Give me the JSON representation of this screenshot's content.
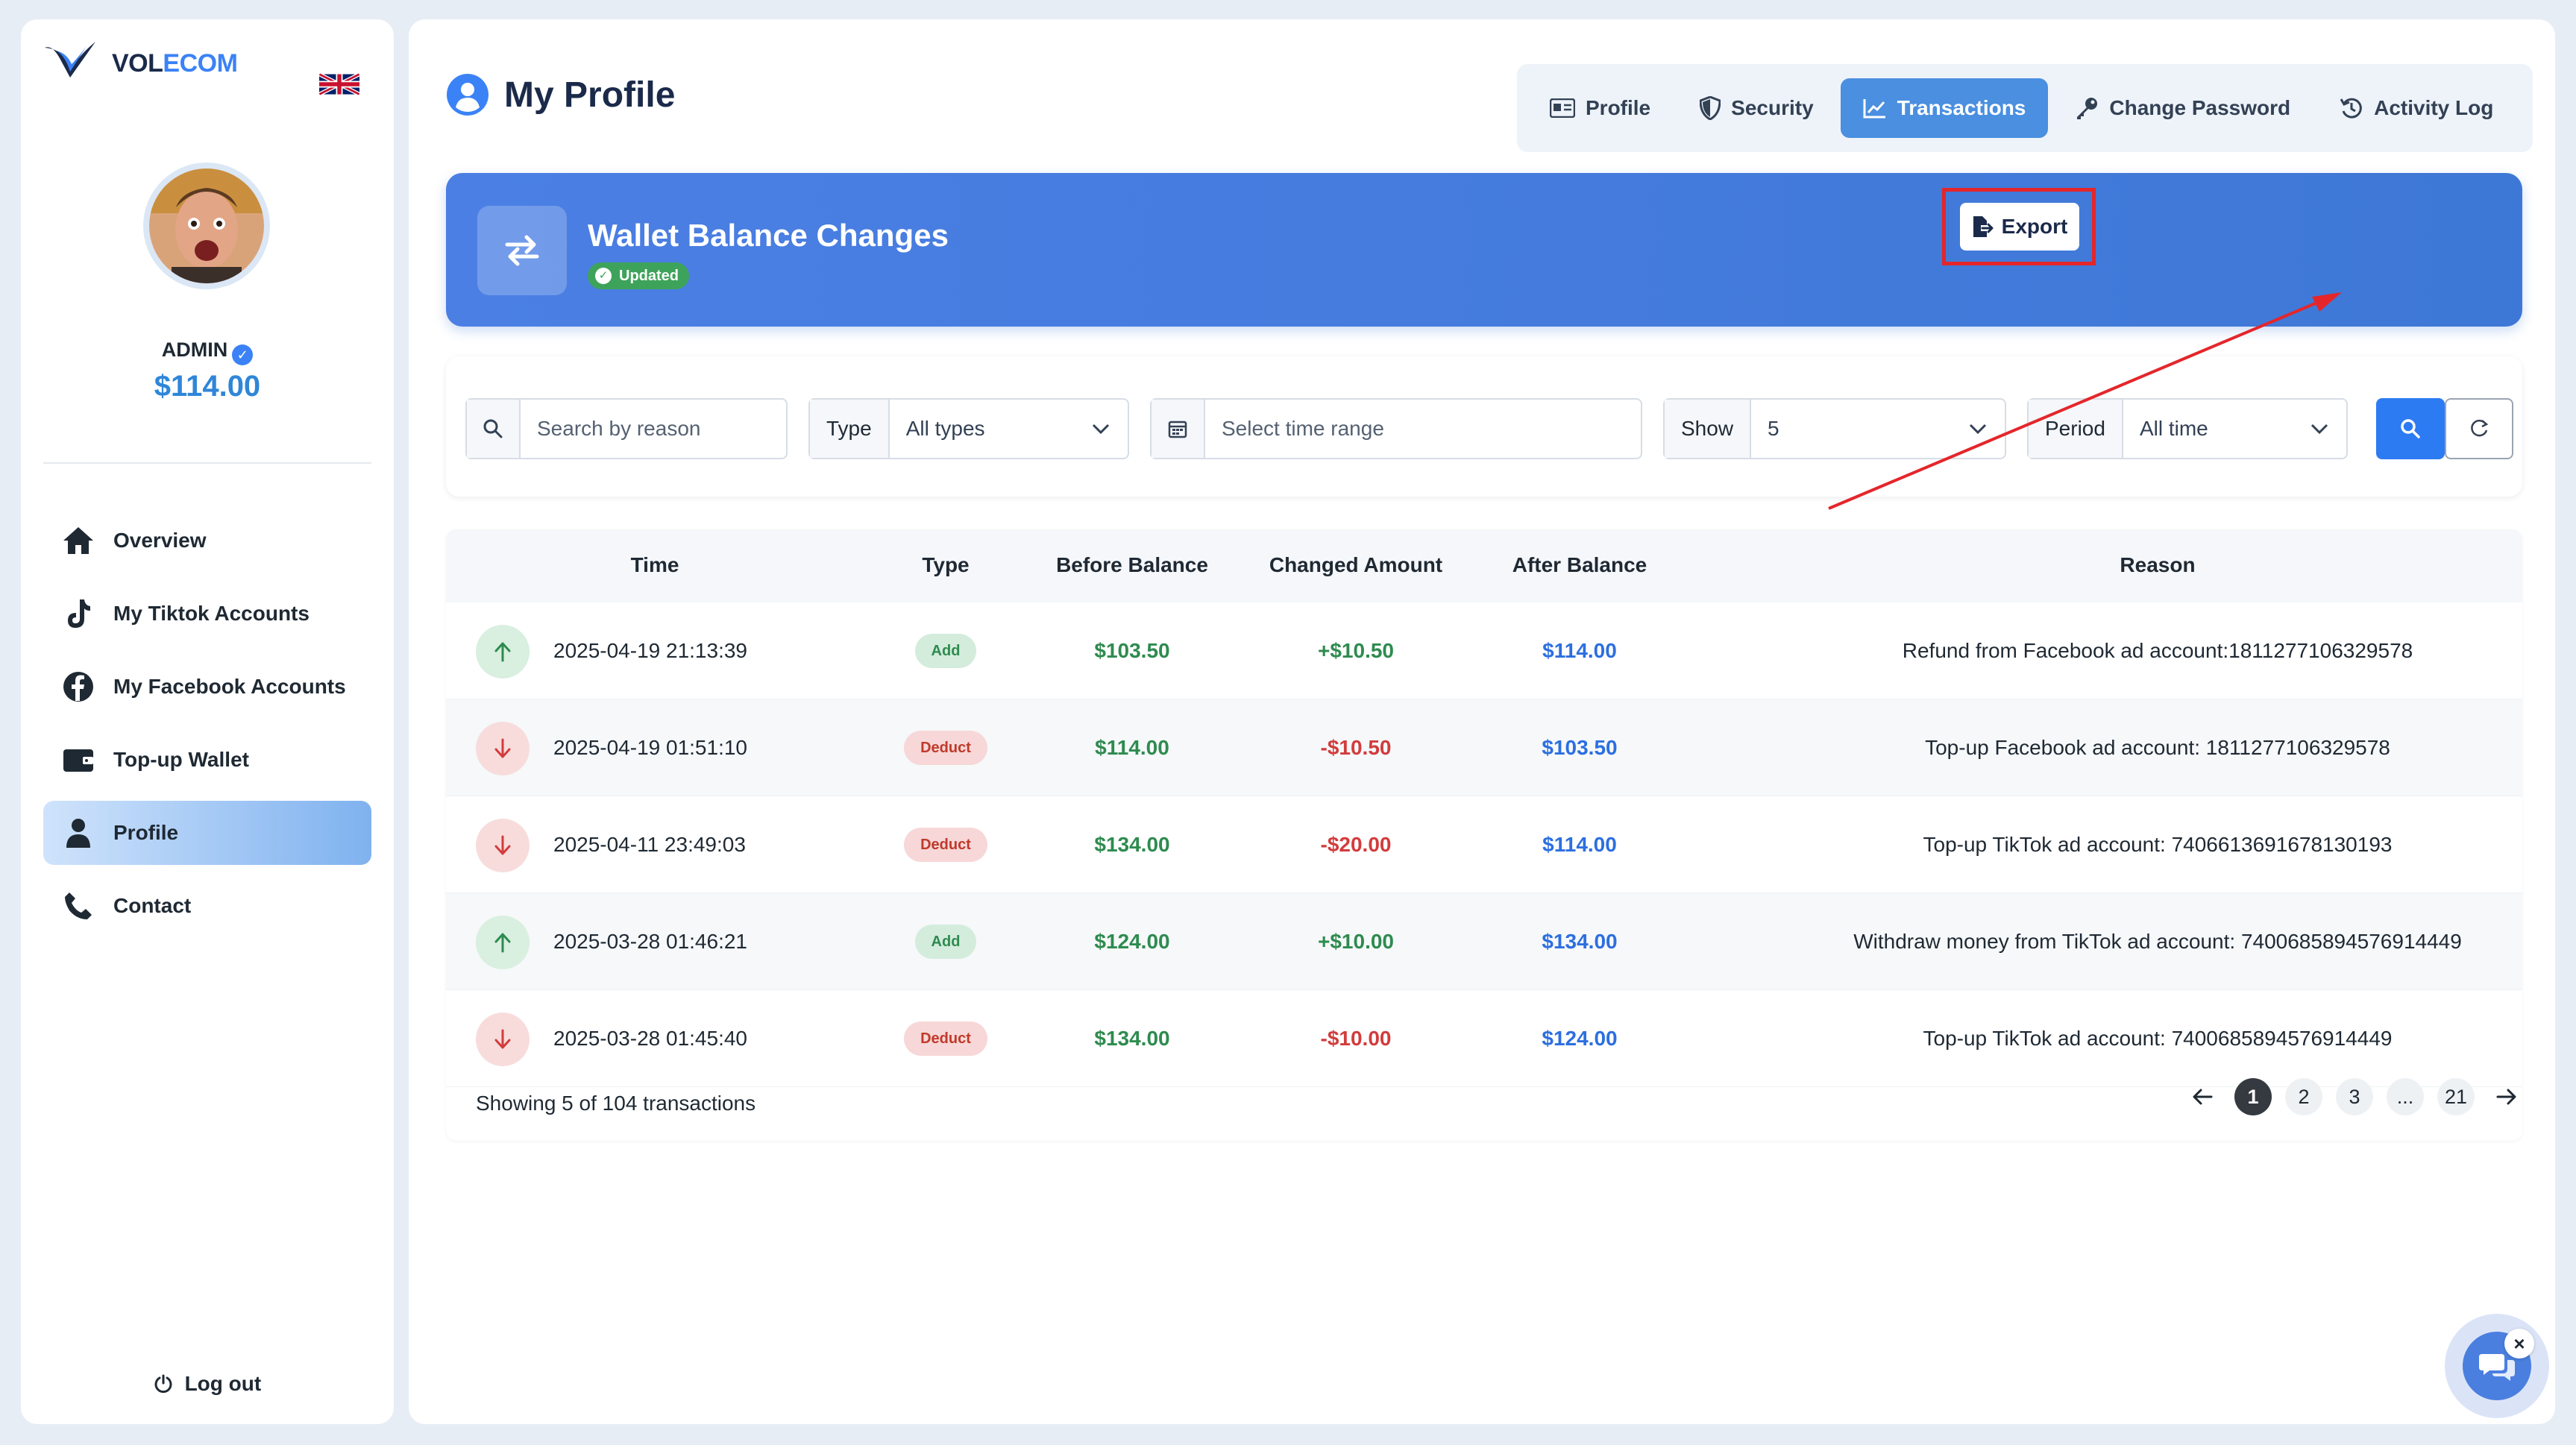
{
  "sidebar": {
    "logo_prefix": "VOL",
    "logo_suffix": "ECOM",
    "user_name": "ADMIN",
    "balance": "$114.00",
    "nav": [
      {
        "label": "Overview",
        "icon": "home-icon"
      },
      {
        "label": "My Tiktok Accounts",
        "icon": "tiktok-icon"
      },
      {
        "label": "My Facebook Accounts",
        "icon": "facebook-icon"
      },
      {
        "label": "Top-up Wallet",
        "icon": "wallet-icon"
      },
      {
        "label": "Profile",
        "icon": "user-icon"
      },
      {
        "label": "Contact",
        "icon": "phone-icon"
      }
    ],
    "logout": "Log out"
  },
  "header": {
    "title": "My Profile",
    "tabs": [
      {
        "label": "Profile",
        "icon": "id-card-icon"
      },
      {
        "label": "Security",
        "icon": "shield-icon"
      },
      {
        "label": "Transactions",
        "icon": "chart-line-icon"
      },
      {
        "label": "Change Password",
        "icon": "key-icon"
      },
      {
        "label": "Activity Log",
        "icon": "history-icon"
      }
    ],
    "active_tab": "Transactions"
  },
  "banner": {
    "title": "Wallet Balance Changes",
    "badge": "Updated",
    "export_label": "Export"
  },
  "filters": {
    "search_placeholder": "Search by reason",
    "type_label": "Type",
    "type_value": "All types",
    "time_placeholder": "Select time range",
    "show_label": "Show",
    "show_value": "5",
    "period_label": "Period",
    "period_value": "All time"
  },
  "table": {
    "columns": [
      "Time",
      "Type",
      "Before Balance",
      "Changed Amount",
      "After Balance",
      "Reason"
    ],
    "rows": [
      {
        "direction": "up",
        "time": "2025-04-19 21:13:39",
        "type": "Add",
        "before": "$103.50",
        "changed": "+$10.50",
        "after": "$114.00",
        "reason": "Refund from Facebook ad account:1811277106329578"
      },
      {
        "direction": "down",
        "time": "2025-04-19 01:51:10",
        "type": "Deduct",
        "before": "$114.00",
        "changed": "-$10.50",
        "after": "$103.50",
        "reason": "Top-up Facebook ad account: 1811277106329578"
      },
      {
        "direction": "down",
        "time": "2025-04-11 23:49:03",
        "type": "Deduct",
        "before": "$134.00",
        "changed": "-$20.00",
        "after": "$114.00",
        "reason": "Top-up TikTok ad account: 7406613691678130193"
      },
      {
        "direction": "up",
        "time": "2025-03-28 01:46:21",
        "type": "Add",
        "before": "$124.00",
        "changed": "+$10.00",
        "after": "$134.00",
        "reason": "Withdraw money from TikTok ad account: 7400685894576914449"
      },
      {
        "direction": "down",
        "time": "2025-03-28 01:45:40",
        "type": "Deduct",
        "before": "$134.00",
        "changed": "-$10.00",
        "after": "$124.00",
        "reason": "Top-up TikTok ad account: 7400685894576914449"
      }
    ],
    "footer": "Showing 5 of 104 transactions",
    "pages": [
      "1",
      "2",
      "3",
      "...",
      "21"
    ],
    "current_page": "1"
  },
  "colors": {
    "accent": "#4a8fe0",
    "banner": "#4b7fe4",
    "positive": "#2e8b4f",
    "negative": "#d23c3c",
    "after_balance": "#2c6fe0",
    "annotation": "#e4262b"
  }
}
